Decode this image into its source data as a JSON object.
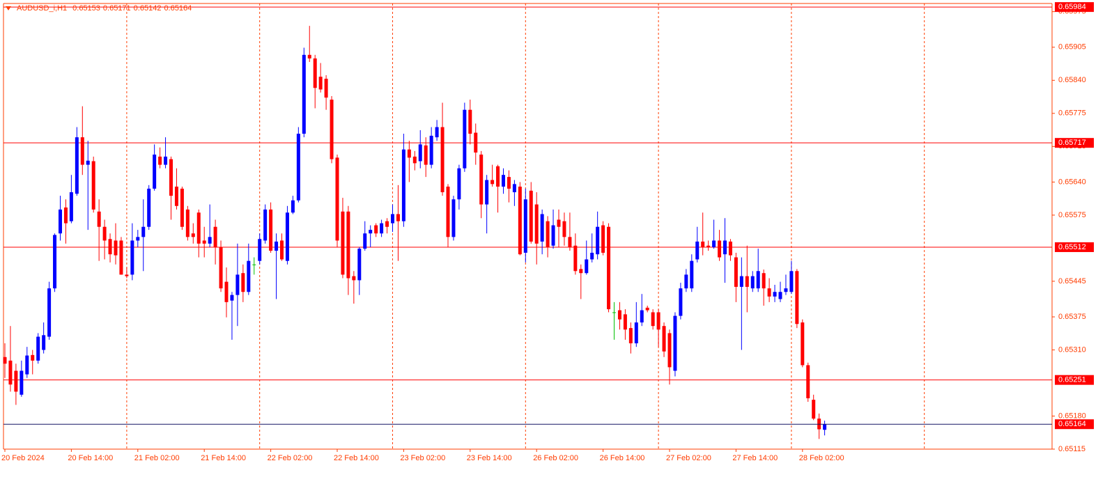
{
  "chart_data": {
    "type": "candlestick",
    "title": "AUDUSD_i,H1",
    "categories": [
      "20 Feb 2024",
      null,
      null,
      null,
      null,
      null,
      null,
      null,
      null,
      null,
      null,
      null,
      "20 Feb 14:00",
      null,
      null,
      null,
      null,
      null,
      null,
      null,
      null,
      null,
      null,
      null,
      "21 Feb 02:00",
      null,
      null,
      null,
      null,
      null,
      null,
      null,
      null,
      null,
      null,
      null,
      "21 Feb 14:00",
      null,
      null,
      null,
      null,
      null,
      null,
      null,
      null,
      null,
      null,
      null,
      "22 Feb 02:00",
      null,
      null,
      null,
      null,
      null,
      null,
      null,
      null,
      null,
      null,
      null,
      "22 Feb 14:00",
      null,
      null,
      null,
      null,
      null,
      null,
      null,
      null,
      null,
      null,
      null,
      "23 Feb 02:00",
      null,
      null,
      null,
      null,
      null,
      null,
      null,
      null,
      null,
      null,
      null,
      "23 Feb 14:00",
      null,
      null,
      null,
      null,
      null,
      null,
      null,
      null,
      null,
      null,
      null,
      "26 Feb 02:00",
      null,
      null,
      null,
      null,
      null,
      null,
      null,
      null,
      null,
      null,
      null,
      "26 Feb 14:00",
      null,
      null,
      null,
      null,
      null,
      null,
      null,
      null,
      null,
      null,
      null,
      "27 Feb 02:00",
      null,
      null,
      null,
      null,
      null,
      null,
      null,
      null,
      null,
      null,
      null,
      "27 Feb 14:00",
      null,
      null,
      null,
      null,
      null,
      null,
      null,
      null,
      null,
      null,
      null,
      "28 Feb 02:00",
      null,
      null,
      null,
      null
    ],
    "open": [
      0.65296,
      0.65289,
      0.65269,
      0.65222,
      0.65262,
      0.653,
      0.65289,
      0.6531,
      0.65336,
      0.65431,
      0.65539,
      0.6559,
      0.65563,
      0.65617,
      0.65728,
      0.65674,
      0.65681,
      0.65582,
      0.65552,
      0.65528,
      0.65525,
      0.65525,
      0.65458,
      0.65458,
      0.65525,
      0.65532,
      0.65552,
      0.65627,
      0.6569,
      0.65674,
      0.65685,
      0.65631,
      0.65627,
      0.65586,
      0.65539,
      0.6558,
      0.65525,
      0.65519,
      0.65552,
      0.65512,
      0.65444,
      0.65407,
      0.65418,
      0.65461,
      0.65424,
      0.65478,
      0.65485,
      0.65525,
      0.65586,
      0.65505,
      0.65525,
      0.65485,
      0.6558,
      0.65604,
      0.65735,
      0.6589,
      0.65883,
      0.65847,
      0.65843,
      0.65802,
      0.65688,
      0.65582,
      0.65582,
      0.65455,
      0.65447,
      0.65509,
      0.65539,
      0.65555,
      0.65539,
      0.65563,
      0.65559,
      0.65577,
      0.65563,
      0.65704,
      0.6569,
      0.65681,
      0.65712,
      0.65674,
      0.65728,
      0.65748,
      0.65631,
      0.65532,
      0.65606,
      0.65667,
      0.65782,
      0.65737,
      0.65694,
      0.65596,
      0.65644,
      0.65671,
      0.65631,
      0.6565,
      0.6562,
      0.65631,
      0.65501,
      0.65623,
      0.65596,
      0.65523,
      0.65563,
      0.65515,
      0.65566,
      0.65563,
      0.65532,
      0.65515,
      0.65469,
      0.65461,
      0.65488,
      0.65498,
      0.65555,
      0.65552,
      0.65384,
      0.65388,
      0.6538,
      0.65353,
      0.65323,
      0.65364,
      0.65393,
      0.65384,
      0.65384,
      0.65357,
      0.65343,
      0.65269,
      0.65377,
      0.65431,
      0.65431,
      0.65488,
      0.65523,
      0.65515,
      0.65512,
      0.65525,
      0.65498,
      0.65523,
      0.65492,
      0.65434,
      0.65455,
      0.65431,
      0.65431,
      0.65461,
      0.65431,
      0.65415,
      0.6541,
      0.65424,
      0.65424,
      0.65465,
      0.65364,
      0.6528,
      0.65212,
      0.65175,
      0.65153
    ],
    "high": [
      0.65323,
      0.65357,
      0.65283,
      0.65289,
      0.65316,
      0.6531,
      0.65343,
      0.65364,
      0.65444,
      0.65539,
      0.65613,
      0.65606,
      0.65654,
      0.65748,
      0.65789,
      0.65721,
      0.6569,
      0.65606,
      0.65566,
      0.65539,
      0.65559,
      0.65532,
      0.65472,
      0.65559,
      0.65546,
      0.65606,
      0.65634,
      0.65714,
      0.65708,
      0.65728,
      0.6569,
      0.65667,
      0.65631,
      0.65593,
      0.65559,
      0.65586,
      0.65552,
      0.65596,
      0.65566,
      0.65525,
      0.65472,
      0.65424,
      0.65519,
      0.65478,
      0.65519,
      0.65492,
      0.65539,
      0.65596,
      0.656,
      0.65539,
      0.65539,
      0.65593,
      0.65613,
      0.65748,
      0.65904,
      0.65947,
      0.6589,
      0.65874,
      0.6585,
      0.65809,
      0.65694,
      0.65609,
      0.65593,
      0.65465,
      0.65512,
      0.65563,
      0.65555,
      0.65559,
      0.65566,
      0.65569,
      0.65596,
      0.65634,
      0.65735,
      0.65721,
      0.65701,
      0.65742,
      0.65728,
      0.65748,
      0.65762,
      0.65796,
      0.65636,
      0.65613,
      0.65674,
      0.65796,
      0.65802,
      0.65755,
      0.65701,
      0.65654,
      0.65674,
      0.65674,
      0.65667,
      0.65663,
      0.65644,
      0.6564,
      0.65627,
      0.6564,
      0.6562,
      0.65586,
      0.65573,
      0.65586,
      0.65586,
      0.6558,
      0.6558,
      0.65539,
      0.65478,
      0.65525,
      0.65539,
      0.65582,
      0.65563,
      0.65559,
      0.65404,
      0.65404,
      0.6539,
      0.65364,
      0.65404,
      0.6542,
      0.65397,
      0.6539,
      0.6539,
      0.65364,
      0.6535,
      0.65384,
      0.65442,
      0.65469,
      0.65498,
      0.65552,
      0.6558,
      0.65525,
      0.65566,
      0.65546,
      0.65569,
      0.65528,
      0.65501,
      0.65492,
      0.65515,
      0.65465,
      0.65509,
      0.65468,
      0.65451,
      0.65438,
      0.65444,
      0.65458,
      0.65485,
      0.65469,
      0.6537,
      0.65285,
      0.65222,
      0.65185,
      0.65171
    ],
    "low": [
      0.65255,
      0.65228,
      0.65202,
      0.65218,
      0.65255,
      0.65262,
      0.65283,
      0.65303,
      0.6533,
      0.65424,
      0.65525,
      0.65519,
      0.65559,
      0.65613,
      0.65654,
      0.65546,
      0.6558,
      0.65485,
      0.65488,
      0.65482,
      0.65478,
      0.65458,
      0.65451,
      0.65447,
      0.65512,
      0.65465,
      0.65546,
      0.65623,
      0.65667,
      0.65667,
      0.65566,
      0.65586,
      0.65546,
      0.65525,
      0.65519,
      0.65492,
      0.65492,
      0.65512,
      0.65478,
      0.65424,
      0.65374,
      0.6533,
      0.65357,
      0.65404,
      0.65418,
      0.65458,
      0.65478,
      0.65519,
      0.65501,
      0.6541,
      0.65485,
      0.65478,
      0.65577,
      0.656,
      0.65728,
      0.65876,
      0.65785,
      0.65816,
      0.65782,
      0.65677,
      0.65512,
      0.65451,
      0.65418,
      0.65401,
      0.65418,
      0.65505,
      0.65512,
      0.65532,
      0.65532,
      0.65539,
      0.65542,
      0.65485,
      0.65552,
      0.6564,
      0.65663,
      0.65667,
      0.6565,
      0.65667,
      0.65721,
      0.65613,
      0.65512,
      0.65525,
      0.65586,
      0.6566,
      0.65714,
      0.65674,
      0.65569,
      0.65539,
      0.65631,
      0.6558,
      0.65617,
      0.656,
      0.65593,
      0.65496,
      0.65482,
      0.65519,
      0.65478,
      0.65498,
      0.65492,
      0.65509,
      0.65512,
      0.65515,
      0.65505,
      0.65458,
      0.6541,
      0.65458,
      0.65482,
      0.65488,
      0.65496,
      0.65384,
      0.6533,
      0.6535,
      0.6533,
      0.65303,
      0.65316,
      0.65357,
      0.65384,
      0.6535,
      0.65316,
      0.65296,
      0.65242,
      0.65258,
      0.6537,
      0.65424,
      0.65424,
      0.65482,
      0.65496,
      0.65505,
      0.65509,
      0.65485,
      0.65442,
      0.65485,
      0.65404,
      0.6531,
      0.65384,
      0.65424,
      0.65424,
      0.65397,
      0.65404,
      0.65404,
      0.65404,
      0.65418,
      0.6542,
      0.65353,
      0.65276,
      0.65208,
      0.65172,
      0.65135,
      0.65142
    ],
    "close": [
      0.65283,
      0.65242,
      0.65228,
      0.65269,
      0.65299,
      0.65289,
      0.65336,
      0.65339,
      0.65431,
      0.65536,
      0.65586,
      0.65559,
      0.6562,
      0.65728,
      0.65674,
      0.65682,
      0.65586,
      0.65552,
      0.65525,
      0.65498,
      0.65496,
      0.65458,
      0.65455,
      0.65525,
      0.65532,
      0.65552,
      0.65627,
      0.65694,
      0.65674,
      0.6569,
      0.65613,
      0.65593,
      0.65552,
      0.65532,
      0.65532,
      0.65519,
      0.65519,
      0.65532,
      0.65512,
      0.65431,
      0.65404,
      0.65418,
      0.65458,
      0.65424,
      0.65485,
      0.65478,
      0.65528,
      0.65586,
      0.65505,
      0.65523,
      0.65488,
      0.6558,
      0.65604,
      0.65735,
      0.6589,
      0.65883,
      0.65825,
      0.65822,
      0.65806,
      0.65685,
      0.65525,
      0.65458,
      0.65451,
      0.65447,
      0.65509,
      0.65539,
      0.65546,
      0.65539,
      0.65559,
      0.65552,
      0.65577,
      0.65563,
      0.65704,
      0.65688,
      0.65677,
      0.65714,
      0.65674,
      0.65731,
      0.65748,
      0.6562,
      0.65532,
      0.65606,
      0.65667,
      0.65782,
      0.65735,
      0.65698,
      0.65596,
      0.65644,
      0.65636,
      0.65631,
      0.65654,
      0.65627,
      0.65636,
      0.65498,
      0.65606,
      0.65523,
      0.65519,
      0.65577,
      0.65512,
      0.65555,
      0.65552,
      0.65532,
      0.65512,
      0.65465,
      0.65461,
      0.65488,
      0.65501,
      0.65552,
      0.65501,
      0.6539,
      0.65384,
      0.6537,
      0.6535,
      0.65323,
      0.65364,
      0.65388,
      0.65388,
      0.65357,
      0.6535,
      0.65307,
      0.65276,
      0.65377,
      0.65431,
      0.65458,
      0.65485,
      0.65523,
      0.65512,
      0.65512,
      0.65525,
      0.65492,
      0.65525,
      0.65496,
      0.65434,
      0.65455,
      0.65434,
      0.65455,
      0.65465,
      0.65431,
      0.65415,
      0.65424,
      0.65424,
      0.65431,
      0.65465,
      0.65361,
      0.6528,
      0.65215,
      0.65175,
      0.65154,
      0.65164
    ],
    "up_color": "#0000ff",
    "down_color": "#ff0000",
    "doji_color": "#00c000",
    "ylim": [
      0.65115,
      0.65991
    ],
    "yticks": [
      0.65975,
      0.65905,
      {
        "value": 0.6584,
        "label": "0.65840"
      },
      0.65775,
      {
        "value": 0.6571,
        "label": "0.65710"
      },
      {
        "value": 0.6564,
        "label": "0.65640"
      },
      0.65575,
      0.65445,
      0.65375,
      {
        "value": 0.6531,
        "label": "0.65310"
      },
      {
        "value": 0.6518,
        "label": "0.65180"
      },
      0.65115
    ],
    "levels": [
      0.65984,
      0.65717,
      0.65512,
      0.65251
    ],
    "level_color": "#ff0000",
    "price_line_color": "#141464",
    "axis_color": "#ff3c00",
    "grid": true
  }
}
